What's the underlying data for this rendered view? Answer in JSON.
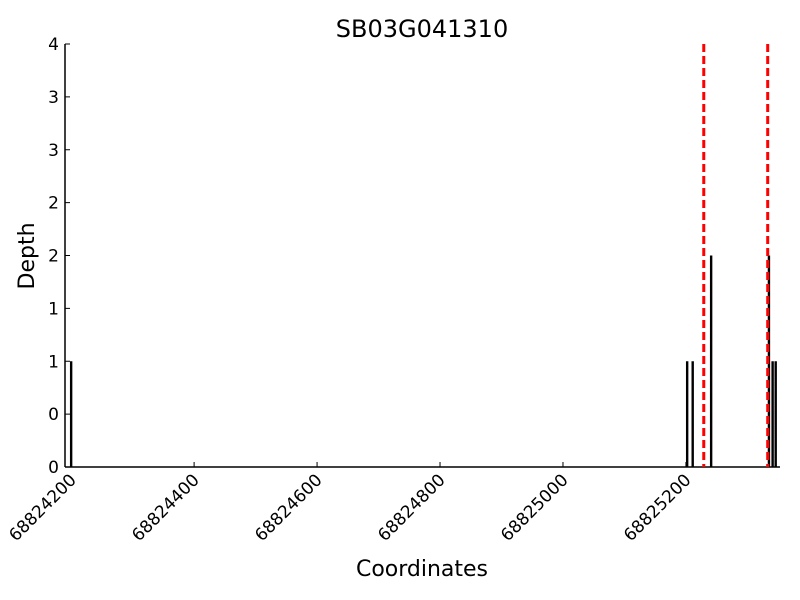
{
  "chart_data": {
    "type": "bar",
    "title": "SB03G041310",
    "x_label": "Coordinates",
    "y_label": "Depth",
    "x": [
      68824200,
      68825202,
      68825211,
      68825241,
      68825335,
      68825341,
      68825346
    ],
    "values": [
      1,
      1,
      1,
      2,
      2,
      1,
      1
    ],
    "color": "#000000",
    "vlines": [
      68825229,
      68825333
    ],
    "vline_color": "#ff0000",
    "xlim": [
      68824190,
      68825353
    ],
    "xticks": [
      68824200,
      68824400,
      68824600,
      68824800,
      68825000,
      68825200
    ],
    "ylim": [
      0,
      4
    ],
    "yticks": [
      0,
      {
        "value": 0.5,
        "label": "0"
      },
      1,
      {
        "value": 1.5,
        "label": "1"
      },
      2,
      {
        "value": 2.5,
        "label": "2"
      },
      3,
      {
        "value": 3.5,
        "label": "3"
      },
      4
    ]
  }
}
